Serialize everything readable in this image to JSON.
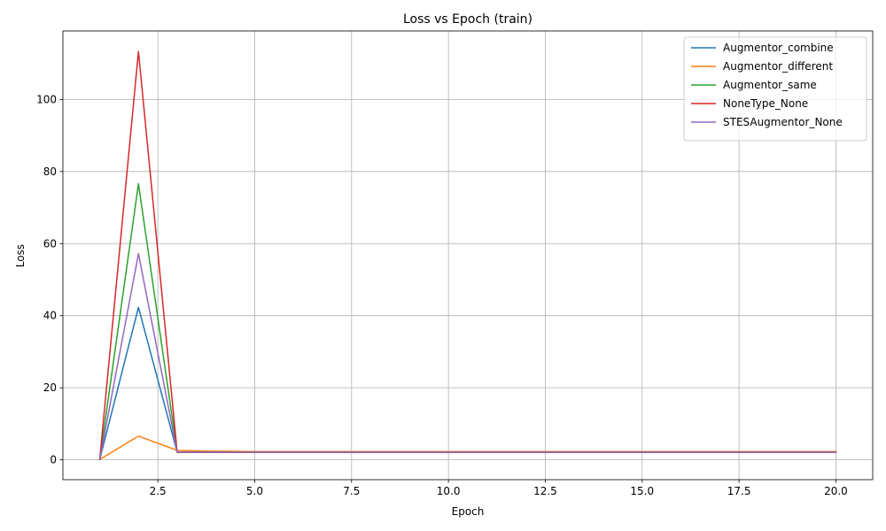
{
  "chart_data": {
    "type": "line",
    "title": "Loss vs Epoch (train)",
    "xlabel": "Epoch",
    "ylabel": "Loss",
    "xlim": [
      0.05,
      20.95
    ],
    "ylim": [
      -5.5,
      119
    ],
    "xticks": [
      2.5,
      5.0,
      7.5,
      10.0,
      12.5,
      15.0,
      17.5,
      20.0
    ],
    "xtick_labels": [
      "2.5",
      "5.0",
      "7.5",
      "10.0",
      "12.5",
      "15.0",
      "17.5",
      "20.0"
    ],
    "yticks": [
      0,
      20,
      40,
      60,
      80,
      100
    ],
    "ytick_labels": [
      "0",
      "20",
      "40",
      "60",
      "80",
      "100"
    ],
    "grid": true,
    "legend_position": "top-right",
    "x": [
      1,
      2,
      3,
      4,
      5,
      6,
      7,
      8,
      9,
      10,
      11,
      12,
      13,
      14,
      15,
      16,
      17,
      18,
      19,
      20
    ],
    "series": [
      {
        "name": "Augmentor_combine",
        "color": "#1f77b4",
        "values": [
          0.1,
          42.3,
          2.1,
          2.1,
          2.1,
          2.1,
          2.1,
          2.1,
          2.1,
          2.1,
          2.1,
          2.1,
          2.1,
          2.1,
          2.1,
          2.1,
          2.1,
          2.1,
          2.1,
          2.1
        ]
      },
      {
        "name": "Augmentor_different",
        "color": "#ff7f0e",
        "values": [
          0.1,
          6.6,
          2.6,
          2.4,
          2.3,
          2.3,
          2.3,
          2.3,
          2.3,
          2.3,
          2.3,
          2.3,
          2.3,
          2.3,
          2.3,
          2.3,
          2.3,
          2.3,
          2.3,
          2.3
        ]
      },
      {
        "name": "Augmentor_same",
        "color": "#2ca02c",
        "values": [
          0.1,
          76.6,
          2.1,
          2.1,
          2.1,
          2.1,
          2.1,
          2.1,
          2.1,
          2.1,
          2.1,
          2.1,
          2.1,
          2.1,
          2.1,
          2.1,
          2.1,
          2.1,
          2.1,
          2.1
        ]
      },
      {
        "name": "NoneType_None",
        "color": "#d62728",
        "values": [
          0.1,
          113.3,
          2.1,
          2.1,
          2.1,
          2.1,
          2.1,
          2.1,
          2.1,
          2.1,
          2.1,
          2.1,
          2.1,
          2.1,
          2.1,
          2.1,
          2.1,
          2.1,
          2.1,
          2.1
        ]
      },
      {
        "name": "STESAugmentor_None",
        "color": "#9467bd",
        "values": [
          0.1,
          57.2,
          2.1,
          2.1,
          2.1,
          2.1,
          2.1,
          2.1,
          2.1,
          2.1,
          2.1,
          2.1,
          2.1,
          2.1,
          2.1,
          2.1,
          2.1,
          2.1,
          2.1,
          2.1
        ]
      }
    ]
  }
}
